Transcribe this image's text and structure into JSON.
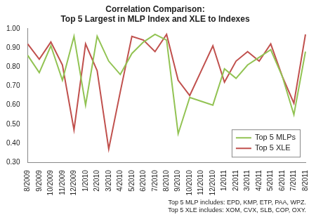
{
  "chart_data": {
    "type": "line",
    "title": [
      "Correlation Comparison:",
      "Top 5 Largest in MLP Index and XLE to Indexes"
    ],
    "annotations": [
      "Top 5 MLP includes: EPD, KMP, ETP, PAA, WPZ.",
      "Top 5 XLE includes: XOM, CVX, SLB, COP, OXY."
    ],
    "categories": [
      "8/2009",
      "9/2009",
      "10/2009",
      "11/2009",
      "12/2009",
      "1/2010",
      "2/2010",
      "3/2010",
      "4/2010",
      "5/2010",
      "6/2010",
      "7/2010",
      "8/2010",
      "9/2010",
      "10/2010",
      "11/2010",
      "12/2010",
      "1/2011",
      "2/2011",
      "3/2011",
      "4/2011",
      "5/2011",
      "6/2011",
      "7/2011",
      "8/2011"
    ],
    "series": [
      {
        "name": "Top 5 MLPs",
        "color": "#92c353",
        "values": [
          0.86,
          0.77,
          0.91,
          0.73,
          0.96,
          0.6,
          0.96,
          0.83,
          0.76,
          0.87,
          0.93,
          0.97,
          0.94,
          0.45,
          0.64,
          0.62,
          0.6,
          0.79,
          0.74,
          0.81,
          0.85,
          0.89,
          0.75,
          0.55,
          0.88
        ]
      },
      {
        "name": "Top 5 XLE",
        "color": "#c0504d",
        "values": [
          0.92,
          0.84,
          0.93,
          0.81,
          0.47,
          0.92,
          0.78,
          0.37,
          0.67,
          0.96,
          0.94,
          0.88,
          0.97,
          0.73,
          0.65,
          0.78,
          0.91,
          0.72,
          0.83,
          0.88,
          0.83,
          0.92,
          0.75,
          0.61,
          0.97
        ]
      }
    ],
    "ylim": [
      0.3,
      1.0
    ],
    "yticks": [
      {
        "value": 0.3,
        "label": "0.30"
      },
      {
        "value": 0.4,
        "label": "0.40"
      },
      {
        "value": 0.5,
        "label": "0.50"
      },
      {
        "value": 0.6,
        "label": "0.60"
      },
      {
        "value": 0.7,
        "label": "0.70"
      },
      {
        "value": 0.8,
        "label": "0.80"
      },
      {
        "value": 0.9,
        "label": "0.90"
      },
      {
        "value": 1.0,
        "label": "1.00"
      }
    ],
    "grid": false,
    "legend": "lower right"
  }
}
